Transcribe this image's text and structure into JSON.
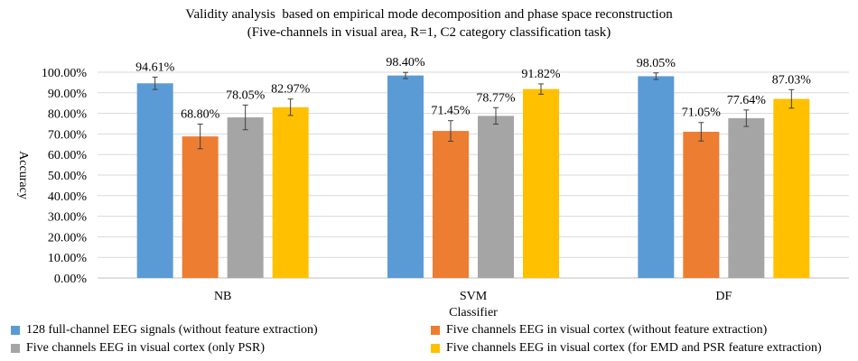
{
  "chart_data": {
    "type": "bar",
    "title": "Validity analysis  based on empirical mode decomposition and phase space reconstruction",
    "subtitle": "(Five-channels in visual area, R=1, C2 category classification task)",
    "xlabel": "Classifier",
    "ylabel": "Accuracy",
    "categories": [
      "NB",
      "SVM",
      "DF"
    ],
    "ylim": [
      0,
      100
    ],
    "yticks": [
      "0.00%",
      "10.00%",
      "20.00%",
      "30.00%",
      "40.00%",
      "50.00%",
      "60.00%",
      "70.00%",
      "80.00%",
      "90.00%",
      "100.00%"
    ],
    "grid": true,
    "legend_position": "bottom",
    "series": [
      {
        "name": "128 full-channel EEG signals (without feature extraction)",
        "color": "#5B9BD5",
        "values": [
          94.61,
          98.4,
          98.05
        ],
        "labels": [
          "94.61%",
          "98.40%",
          "98.05%"
        ],
        "errors": [
          3.0,
          1.5,
          1.6
        ]
      },
      {
        "name": "Five channels EEG in visual cortex (without feature extraction)",
        "color": "#ED7D31",
        "values": [
          68.8,
          71.45,
          71.05
        ],
        "labels": [
          "68.80%",
          "71.45%",
          "71.05%"
        ],
        "errors": [
          6.0,
          5.0,
          4.5
        ]
      },
      {
        "name": "Five channels EEG in visual cortex (only PSR)",
        "color": "#A5A5A5",
        "values": [
          78.05,
          78.77,
          77.64
        ],
        "labels": [
          "78.05%",
          "78.77%",
          "77.64%"
        ],
        "errors": [
          6.0,
          4.0,
          4.0
        ]
      },
      {
        "name": "Five channels EEG in visual cortex (for EMD and PSR feature extraction)",
        "color": "#FFC000",
        "values": [
          82.97,
          91.82,
          87.03
        ],
        "labels": [
          "82.97%",
          "91.82%",
          "87.03%"
        ],
        "errors": [
          4.0,
          2.5,
          4.5
        ]
      }
    ]
  }
}
